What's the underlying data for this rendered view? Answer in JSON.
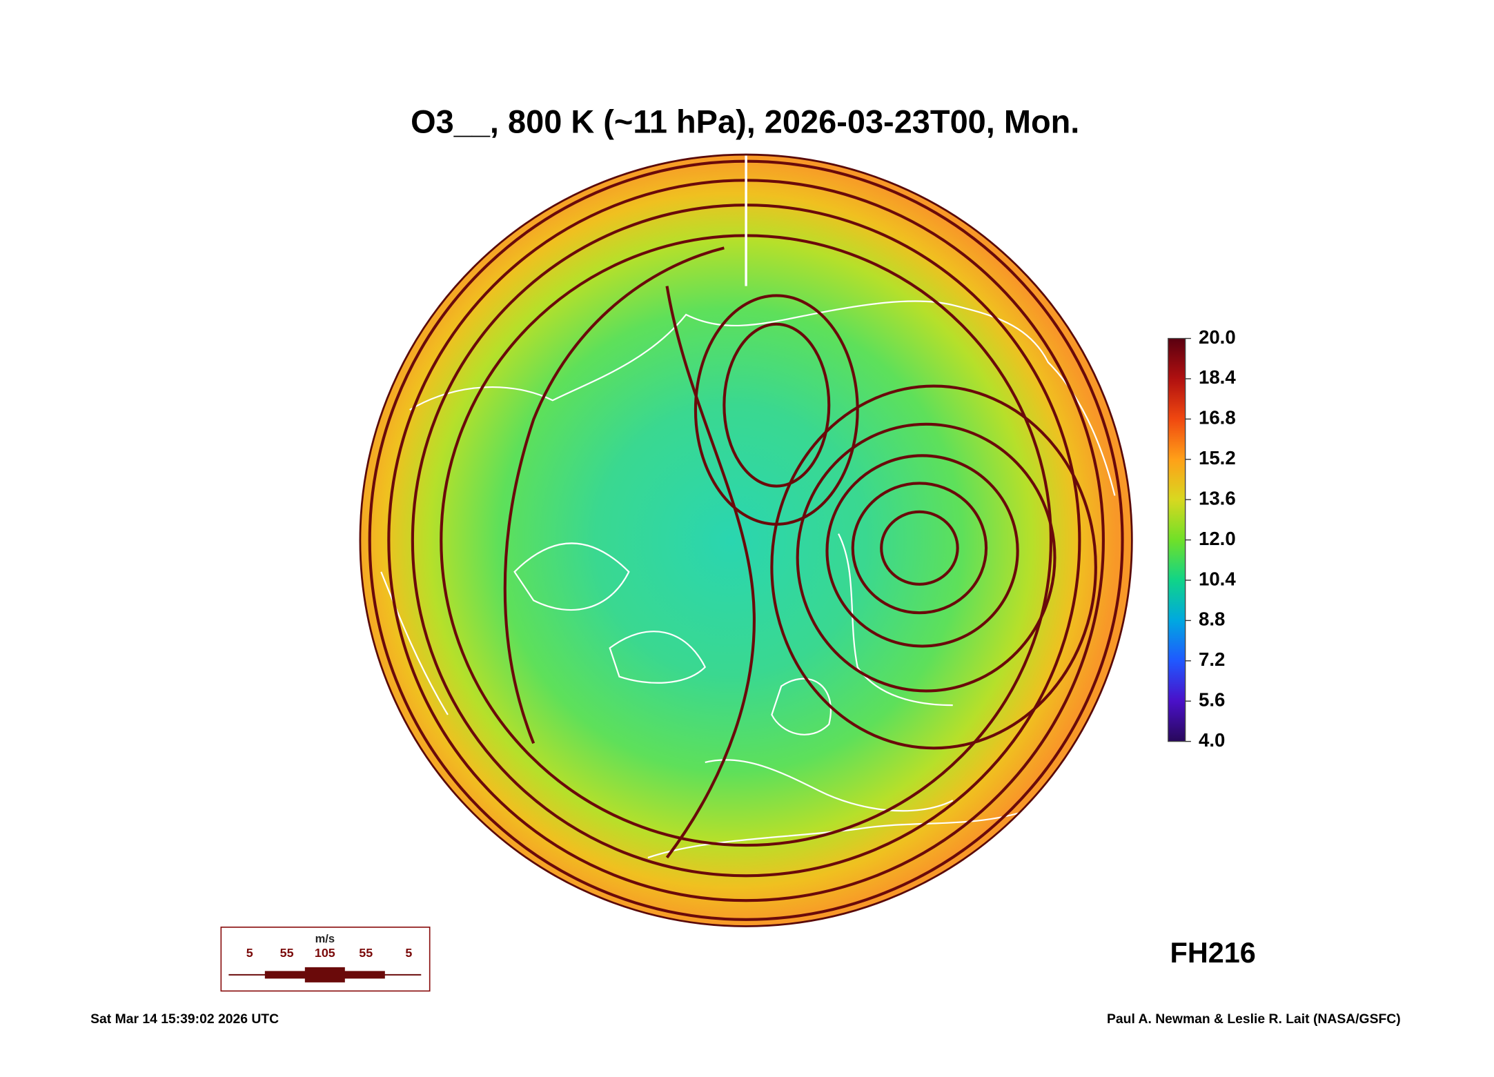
{
  "title": "O3__, 800 K (~11 hPa), 2026-03-23T00, Mon.",
  "colorbar": {
    "lim": [
      4,
      20
    ],
    "ticks": [
      {
        "value": 20,
        "label": "20.0"
      },
      {
        "value": 18.4,
        "label": "18.4"
      },
      {
        "value": 16.8,
        "label": "16.8"
      },
      {
        "value": 15.2,
        "label": "15.2"
      },
      {
        "value": 13.6,
        "label": "13.6"
      },
      {
        "value": 12,
        "label": "12.0"
      },
      {
        "value": 10.4,
        "label": "10.4"
      },
      {
        "value": 8.8,
        "label": "8.8"
      },
      {
        "value": 7.2,
        "label": "7.2"
      },
      {
        "value": 5.6,
        "label": "5.6"
      },
      {
        "value": 4,
        "label": "4.0"
      }
    ]
  },
  "wind_legend": {
    "units": "m/s",
    "labels": [
      5,
      55,
      105,
      55,
      5
    ]
  },
  "forecast_hour": "FH216",
  "timestamp": "Sat Mar 14 15:39:02 2026 UTC",
  "credit": "Paul A. Newman & Leslie R. Lait (NASA/GSFC)"
}
